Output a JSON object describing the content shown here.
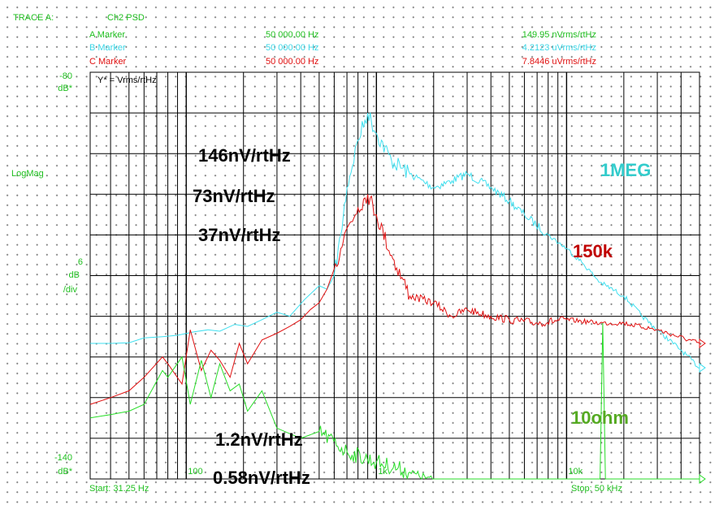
{
  "header": {
    "trace_label": "TRACE A:",
    "channel": "Ch2 PSD",
    "markers": [
      {
        "label": "A Marker",
        "freq": "50 000.00 Hz",
        "value": "149.95   nVrms/rtHz",
        "color": "#1fbf1f"
      },
      {
        "label": "B Marker",
        "freq": "50 000.00 Hz",
        "value": "4.2123  uVrms/rtHz",
        "color": "#39d6e6"
      },
      {
        "label": "C Marker",
        "freq": "50 000.00 Hz",
        "value": "7.8446  uVrms/rtHz",
        "color": "#e01010"
      }
    ]
  },
  "y_axis": {
    "top_value": "-80",
    "top_unit": "dB*",
    "mode": "LogMag",
    "scale_value": "6",
    "scale_unit": "dB",
    "scale_per": "/div",
    "bottom_value": "-140",
    "bottom_unit": "dB*",
    "reference_note": "Y* = Vrms/rtHz"
  },
  "x_axis": {
    "start_label": "Start: 31.25 Hz",
    "stop_label": "Stop: 50 kHz",
    "tick_labels": [
      "100",
      "1k",
      "10k"
    ]
  },
  "annotations": {
    "level_146": "146nV/rtHz",
    "level_73": "73nV/rtHz",
    "level_37": "37nV/rtHz",
    "level_1_2": "1.2nV/rtHz",
    "level_0_58": "0.58nV/rtHz",
    "trace_1meg": "1MEG",
    "trace_150k": "150k",
    "trace_10ohm": "10ohm"
  },
  "colors": {
    "trace_1meg": "#3fe0f0",
    "trace_150k": "#e01010",
    "trace_10ohm": "#28dd28",
    "label_1meg": "#33cccc",
    "label_150k": "#c00000",
    "label_10ohm": "#55aa22",
    "grid": "#000000",
    "axis_text": "#1fbf1f"
  },
  "chart_data": {
    "type": "line",
    "title": "Ch2 PSD",
    "xlabel": "",
    "ylabel": "LogMag",
    "x_scale": "log",
    "xlim": [
      31.25,
      50000
    ],
    "ylim": [
      -140,
      -80
    ],
    "y_unit": "dB (Vrms/rtHz)",
    "grid": true,
    "series": [
      {
        "name": "1MEG",
        "x": [
          31.25,
          40,
          50,
          60,
          75,
          90,
          110,
          130,
          150,
          180,
          210,
          250,
          300,
          350,
          420,
          500,
          550,
          600,
          650,
          700,
          800,
          900,
          1000,
          1200,
          1500,
          2000,
          2500,
          3000,
          4000,
          5000,
          6000,
          8000,
          10000,
          12000,
          15000,
          20000,
          25000,
          30000,
          40000,
          50000
        ],
        "values": [
          -120.0,
          -120.0,
          -119.9,
          -119.2,
          -119.0,
          -118.8,
          -118.3,
          -118.0,
          -118.2,
          -117.2,
          -117.5,
          -116.5,
          -115.4,
          -116.0,
          -113.5,
          -111.5,
          -112.0,
          -110.0,
          -104.0,
          -97.0,
          -90.0,
          -86.0,
          -89.0,
          -93.0,
          -95.0,
          -97.0,
          -96.0,
          -95.0,
          -97.0,
          -99.0,
          -101.0,
          -104.0,
          -106.0,
          -108.0,
          -111.0,
          -113.0,
          -116.0,
          -118.0,
          -121.0,
          -123.6
        ]
      },
      {
        "name": "150k",
        "x": [
          31.25,
          40,
          50,
          60,
          75,
          80,
          95,
          105,
          120,
          135,
          150,
          170,
          190,
          210,
          250,
          300,
          350,
          400,
          450,
          500,
          550,
          600,
          650,
          700,
          800,
          900,
          1000,
          1200,
          1500,
          2000,
          2500,
          3000,
          4000,
          5000,
          7000,
          10000,
          15000,
          20000,
          30000,
          50000
        ],
        "values": [
          -129.0,
          -128.0,
          -127.0,
          -125.0,
          -122.0,
          -123.0,
          -126.0,
          -118.0,
          -124.0,
          -121.0,
          -122.5,
          -125.0,
          -120.0,
          -123.0,
          -119.5,
          -118.5,
          -117.5,
          -116.5,
          -115.0,
          -114.0,
          -112.0,
          -109.0,
          -106.0,
          -103.0,
          -100.0,
          -98.0,
          -101.0,
          -107.0,
          -113.0,
          -114.0,
          -116.0,
          -115.0,
          -116.0,
          -116.5,
          -117.0,
          -116.5,
          -117.0,
          -117.0,
          -118.0,
          -120.0
        ]
      },
      {
        "name": "10ohm",
        "x": [
          31.25,
          40,
          50,
          60,
          75,
          80,
          95,
          105,
          120,
          135,
          150,
          170,
          190,
          210,
          250,
          300,
          400,
          500,
          700,
          1000,
          1500,
          2000,
          3000,
          5000,
          7000,
          10000,
          13000,
          15000,
          15500,
          16000,
          20000,
          30000,
          50000
        ],
        "values": [
          -131.0,
          -130.5,
          -130.0,
          -129.0,
          -124.0,
          -125.0,
          -122.0,
          -129.0,
          -122.5,
          -128.0,
          -123.0,
          -127.0,
          -126.0,
          -130.0,
          -127.0,
          -132.5,
          -134.0,
          -133.0,
          -136.0,
          -137.5,
          -139.0,
          -140.2,
          -141.2,
          -141.5,
          -141.7,
          -141.6,
          -141.5,
          -141.5,
          -117.0,
          -141.5,
          -141.6,
          -141.6,
          -141.5
        ]
      }
    ],
    "annotations": [
      "146nV/rtHz",
      "73nV/rtHz",
      "37nV/rtHz",
      "1.2nV/rtHz",
      "0.58nV/rtHz"
    ]
  }
}
